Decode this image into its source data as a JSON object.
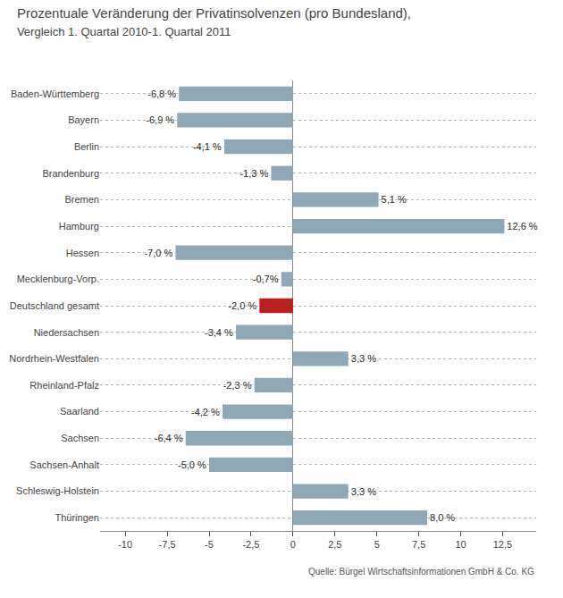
{
  "chart_data": {
    "type": "bar",
    "orientation": "horizontal",
    "title": "Prozentuale Veränderung der Privatinsolvenzen (pro Bundesland),",
    "subtitle": "Vergleich 1. Quartal 2010-1. Quartal 2011",
    "annotations": [
      "Quelle: Bürgel Wirtschaftsinformationen GmbH & Co. KG"
    ],
    "categories": [
      "Baden-Württemberg",
      "Bayern",
      "Berlin",
      "Brandenburg",
      "Bremen",
      "Hamburg",
      "Hessen",
      "Mecklenburg-Vorp.",
      "Deutschland gesamt",
      "Niedersachsen",
      "Nordrhein-Westfalen",
      "Rheinland-Pfalz",
      "Saarland",
      "Sachsen",
      "Sachsen-Anhalt",
      "Schleswig-Holstein",
      "Thüringen"
    ],
    "values": [
      -6.8,
      -6.9,
      -4.1,
      -1.3,
      5.1,
      12.6,
      -7.0,
      -0.7,
      -2.0,
      -3.4,
      3.3,
      -2.3,
      -4.2,
      -6.4,
      -5.0,
      3.3,
      8.0
    ],
    "value_labels": [
      "-6,8 %",
      "-6,9 %",
      "-4,1 %",
      "-1,3 %",
      "5,1 %",
      "12,6 %",
      "-7,0 %",
      "-0,7%",
      "-2,0 %",
      "-3,4 %",
      "3,3 %",
      "-2,3 %",
      "-4,2 %",
      "-6,4 %",
      "-5,0 %",
      "3,3 %",
      "8,0 %"
    ],
    "data_labels": true,
    "colors": [
      "#8fa8b8",
      "#8fa8b8",
      "#8fa8b8",
      "#8fa8b8",
      "#8fa8b8",
      "#8fa8b8",
      "#8fa8b8",
      "#8fa8b8",
      "#bb2020",
      "#8fa8b8",
      "#8fa8b8",
      "#8fa8b8",
      "#8fa8b8",
      "#8fa8b8",
      "#8fa8b8",
      "#8fa8b8",
      "#8fa8b8"
    ],
    "xlim": [
      -11.5,
      14.5
    ],
    "xticks": [
      -10,
      {
        "value": -7.5,
        "label": "-7,5"
      },
      -5,
      {
        "value": -2.5,
        "label": "-2,5"
      },
      0,
      {
        "value": 2.5,
        "label": "2,5"
      },
      5,
      {
        "value": 7.5,
        "label": "7,5"
      },
      10,
      {
        "value": 12.5,
        "label": "12,5"
      }
    ],
    "grid": true
  }
}
